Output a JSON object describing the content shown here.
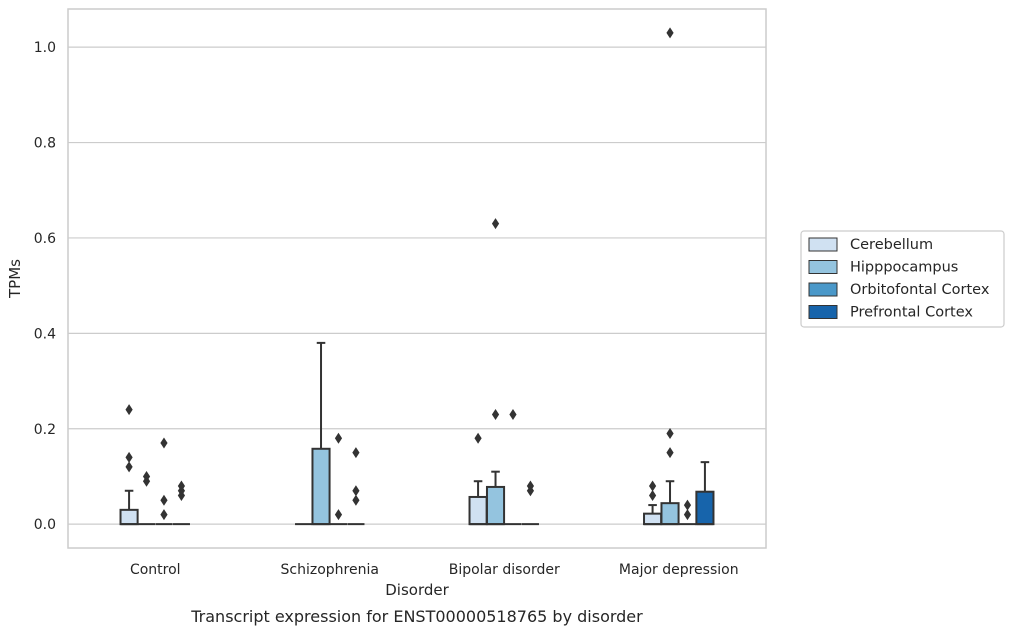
{
  "chart_data": {
    "type": "box",
    "title": "",
    "xlabel": "Disorder",
    "ylabel": "TPMs",
    "caption": "Transcript expression for ENST00000518765 by disorder",
    "ylim": [
      -0.05,
      1.08
    ],
    "yticks": [
      0.0,
      0.2,
      0.4,
      0.6,
      0.8,
      1.0
    ],
    "ytick_labels": [
      "0.0",
      "0.2",
      "0.4",
      "0.6",
      "0.8",
      "1.0"
    ],
    "grid": "horizontal",
    "legend_position": "right",
    "categories": [
      "Control",
      "Schizophrenia",
      "Bipolar disorder",
      "Major depression"
    ],
    "series": [
      {
        "name": "Cerebellum",
        "color": "#d0e1f2",
        "boxes": [
          {
            "q1": 0.0,
            "median": 0.0,
            "q3": 0.03,
            "whisker_low": 0.0,
            "whisker_high": 0.07,
            "outliers": [
              0.12,
              0.14,
              0.24
            ]
          },
          {
            "q1": 0.0,
            "median": 0.0,
            "q3": 0.0,
            "whisker_low": 0.0,
            "whisker_high": 0.0,
            "outliers": []
          },
          {
            "q1": 0.0,
            "median": 0.0,
            "q3": 0.057,
            "whisker_low": 0.0,
            "whisker_high": 0.09,
            "outliers": [
              0.18
            ]
          },
          {
            "q1": 0.0,
            "median": 0.0,
            "q3": 0.022,
            "whisker_low": 0.0,
            "whisker_high": 0.04,
            "outliers": [
              0.06,
              0.08
            ]
          }
        ]
      },
      {
        "name": "Hipppocampus",
        "color": "#94c4df",
        "boxes": [
          {
            "q1": 0.0,
            "median": 0.0,
            "q3": 0.0,
            "whisker_low": 0.0,
            "whisker_high": 0.0,
            "outliers": [
              0.09,
              0.1
            ]
          },
          {
            "q1": 0.0,
            "median": 0.0,
            "q3": 0.158,
            "whisker_low": 0.0,
            "whisker_high": 0.38,
            "outliers": []
          },
          {
            "q1": 0.0,
            "median": 0.0,
            "q3": 0.078,
            "whisker_low": 0.0,
            "whisker_high": 0.11,
            "outliers": [
              0.23,
              0.63
            ]
          },
          {
            "q1": 0.0,
            "median": 0.0,
            "q3": 0.044,
            "whisker_low": 0.0,
            "whisker_high": 0.09,
            "outliers": [
              0.15,
              0.19,
              1.03
            ]
          }
        ]
      },
      {
        "name": "Orbitofontal Cortex",
        "color": "#4a98c9",
        "boxes": [
          {
            "q1": 0.0,
            "median": 0.0,
            "q3": 0.0,
            "whisker_low": 0.0,
            "whisker_high": 0.0,
            "outliers": [
              0.02,
              0.05,
              0.17
            ]
          },
          {
            "q1": 0.0,
            "median": 0.0,
            "q3": 0.0,
            "whisker_low": 0.0,
            "whisker_high": 0.0,
            "outliers": [
              0.02,
              0.18
            ]
          },
          {
            "q1": 0.0,
            "median": 0.0,
            "q3": 0.0,
            "whisker_low": 0.0,
            "whisker_high": 0.0,
            "outliers": [
              0.23
            ]
          },
          {
            "q1": 0.0,
            "median": 0.0,
            "q3": 0.0,
            "whisker_low": 0.0,
            "whisker_high": 0.0,
            "outliers": [
              0.02,
              0.04
            ]
          }
        ]
      },
      {
        "name": "Prefrontal Cortex",
        "color": "#1764ab",
        "boxes": [
          {
            "q1": 0.0,
            "median": 0.0,
            "q3": 0.0,
            "whisker_low": 0.0,
            "whisker_high": 0.0,
            "outliers": [
              0.06,
              0.07,
              0.08
            ]
          },
          {
            "q1": 0.0,
            "median": 0.0,
            "q3": 0.0,
            "whisker_low": 0.0,
            "whisker_high": 0.0,
            "outliers": [
              0.05,
              0.07,
              0.15
            ]
          },
          {
            "q1": 0.0,
            "median": 0.0,
            "q3": 0.0,
            "whisker_low": 0.0,
            "whisker_high": 0.0,
            "outliers": [
              0.07,
              0.08
            ]
          },
          {
            "q1": 0.0,
            "median": 0.0,
            "q3": 0.068,
            "whisker_low": 0.0,
            "whisker_high": 0.13,
            "outliers": []
          }
        ]
      }
    ]
  },
  "colors": {
    "grid": "#cccccc",
    "frame": "#cccccc",
    "line": "#333333",
    "text": "#262626"
  }
}
